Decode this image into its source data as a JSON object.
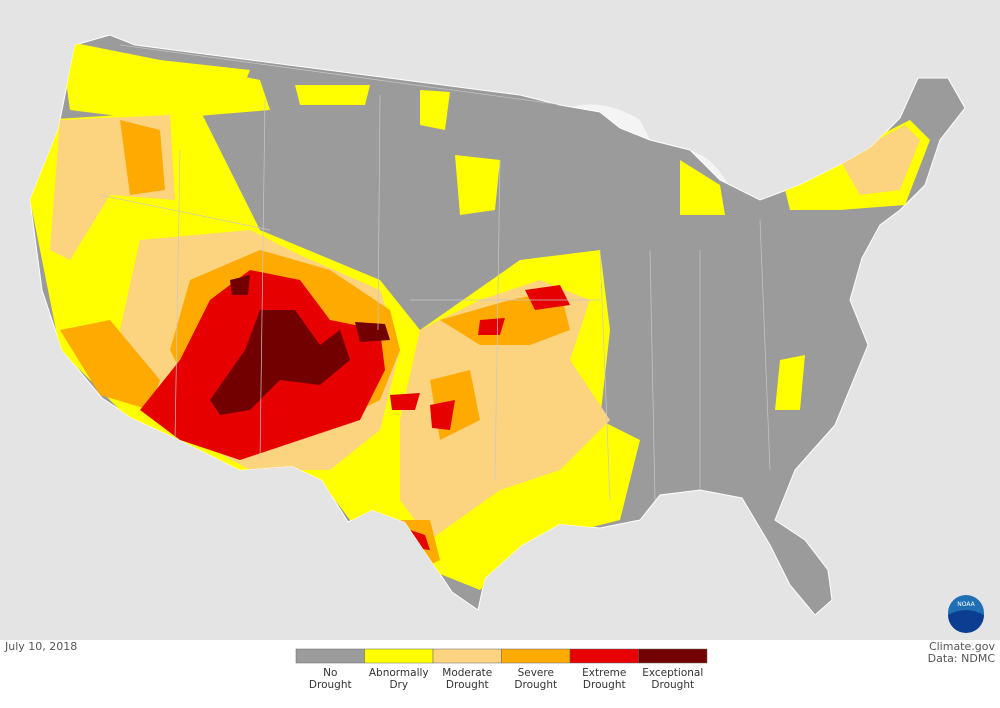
{
  "date": "July 10, 2018",
  "credit": "Climate.gov",
  "source": "Data: NDMC",
  "logo": "NOAA",
  "legend": [
    {
      "lines": [
        "No",
        "Drought"
      ],
      "color": "#9b9b9b"
    },
    {
      "lines": [
        "Abnormally",
        "Dry"
      ],
      "color": "#ffff00"
    },
    {
      "lines": [
        "Moderate",
        "Drought"
      ],
      "color": "#fcd37f"
    },
    {
      "lines": [
        "Severe",
        "Drought"
      ],
      "color": "#ffaa00"
    },
    {
      "lines": [
        "Extreme",
        "Drought"
      ],
      "color": "#e60000"
    },
    {
      "lines": [
        "Exceptional",
        "Drought"
      ],
      "color": "#730000"
    }
  ]
}
